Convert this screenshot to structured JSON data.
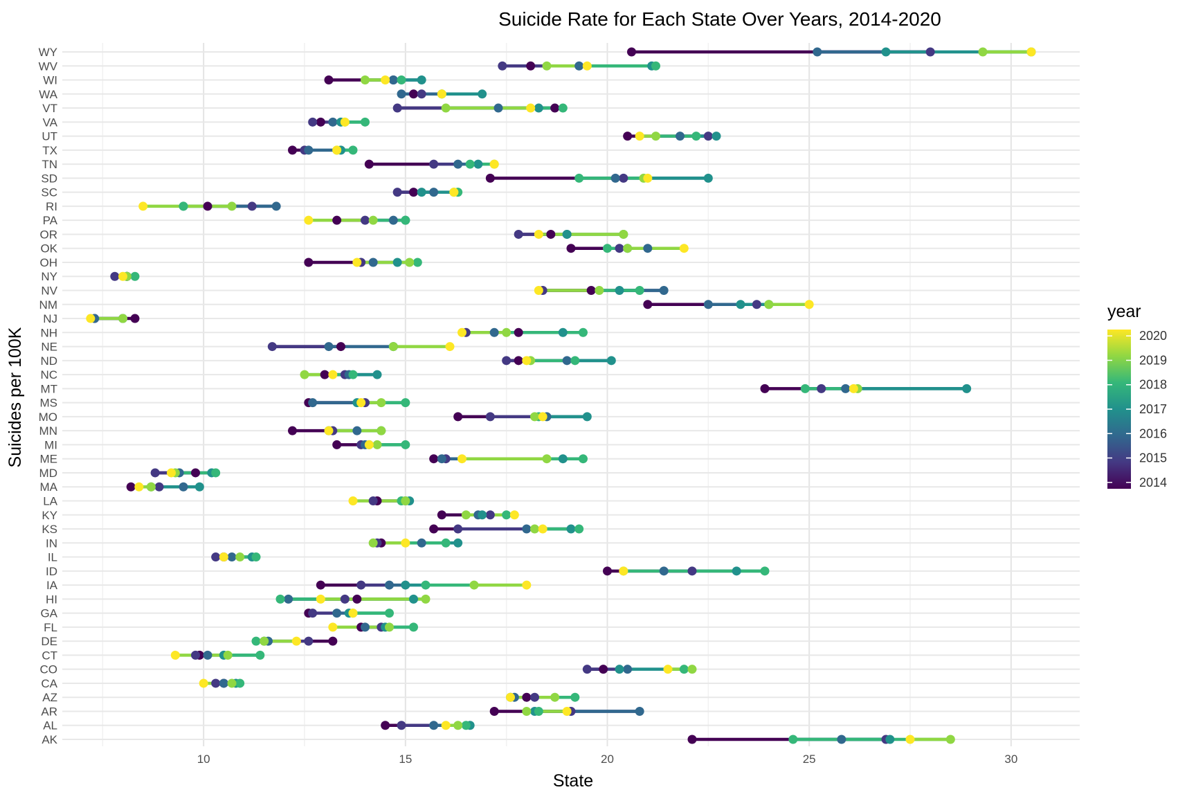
{
  "chart_data": {
    "type": "dot-range",
    "title": "Suicide Rate for Each State Over Years, 2014-2020",
    "xlabel": "State",
    "ylabel": "Suicides per 100K",
    "xlim": [
      6.5,
      31.7
    ],
    "xticks": [
      10,
      15,
      20,
      25,
      30
    ],
    "legend": {
      "title": "year",
      "position": "right",
      "ticks": [
        2014,
        2015,
        2016,
        2017,
        2018,
        2019,
        2020
      ]
    },
    "grid": true,
    "years": [
      2014,
      2015,
      2016,
      2017,
      2018,
      2019,
      2020
    ],
    "colors": {
      "2014": "#440154",
      "2015": "#443983",
      "2016": "#31688e",
      "2017": "#21918c",
      "2018": "#35b779",
      "2019": "#90d743",
      "2020": "#fde725"
    },
    "states": [
      "AK",
      "AL",
      "AR",
      "AZ",
      "CA",
      "CO",
      "CT",
      "DE",
      "FL",
      "GA",
      "HI",
      "IA",
      "ID",
      "IL",
      "IN",
      "KS",
      "KY",
      "LA",
      "MA",
      "MD",
      "ME",
      "MI",
      "MN",
      "MO",
      "MS",
      "MT",
      "NC",
      "ND",
      "NE",
      "NH",
      "NJ",
      "NM",
      "NV",
      "NY",
      "OH",
      "OK",
      "OR",
      "PA",
      "RI",
      "SC",
      "SD",
      "TN",
      "TX",
      "UT",
      "VA",
      "VT",
      "WA",
      "WI",
      "WV",
      "WY"
    ],
    "values": {
      "AK": [
        22.1,
        26.9,
        25.8,
        27.0,
        24.6,
        28.5,
        27.5
      ],
      "AL": [
        14.5,
        14.9,
        15.7,
        16.6,
        16.5,
        16.3,
        16.0
      ],
      "AR": [
        17.2,
        19.1,
        20.8,
        18.2,
        18.3,
        18.0,
        19.0
      ],
      "AZ": [
        18.0,
        18.2,
        17.7,
        17.6,
        19.2,
        18.7,
        17.6
      ],
      "CA": [
        10.5,
        10.3,
        10.5,
        10.8,
        10.9,
        10.7,
        10.0
      ],
      "CO": [
        19.9,
        19.5,
        20.5,
        20.3,
        21.9,
        22.1,
        21.5
      ],
      "CT": [
        9.9,
        9.8,
        10.1,
        10.5,
        11.4,
        10.6,
        9.3
      ],
      "DE": [
        13.2,
        12.6,
        11.6,
        11.5,
        11.3,
        11.5,
        12.3
      ],
      "FL": [
        13.9,
        14.4,
        14.0,
        14.5,
        15.2,
        14.6,
        13.2
      ],
      "GA": [
        12.6,
        12.7,
        13.3,
        13.6,
        14.6,
        13.7,
        13.7
      ],
      "HI": [
        13.8,
        13.5,
        12.1,
        15.2,
        11.9,
        15.5,
        12.9
      ],
      "IA": [
        12.9,
        13.9,
        14.6,
        15.0,
        15.5,
        16.7,
        18.0
      ],
      "ID": [
        20.0,
        22.1,
        21.4,
        23.2,
        23.9,
        20.4,
        20.4
      ],
      "IL": [
        10.5,
        10.3,
        10.7,
        11.2,
        11.3,
        10.9,
        10.5
      ],
      "IN": [
        14.4,
        14.3,
        15.4,
        16.3,
        16.0,
        14.2,
        15.0
      ],
      "KS": [
        15.7,
        16.3,
        18.0,
        19.1,
        19.3,
        18.2,
        18.4
      ],
      "KY": [
        15.9,
        17.1,
        16.8,
        16.9,
        17.5,
        16.5,
        17.7
      ],
      "LA": [
        14.3,
        14.2,
        15.0,
        15.1,
        14.9,
        15.0,
        13.7
      ],
      "MA": [
        8.2,
        8.9,
        9.5,
        9.9,
        8.7,
        8.7,
        8.4
      ],
      "MD": [
        9.8,
        8.8,
        9.4,
        10.2,
        10.3,
        9.3,
        9.2
      ],
      "ME": [
        15.7,
        16.0,
        15.9,
        18.9,
        19.4,
        18.5,
        16.4
      ],
      "MI": [
        13.3,
        13.9,
        14.0,
        14.1,
        15.0,
        14.3,
        14.1
      ],
      "MN": [
        12.2,
        13.2,
        13.8,
        13.1,
        14.4,
        14.4,
        13.1
      ],
      "MO": [
        16.3,
        17.1,
        18.5,
        19.5,
        18.3,
        18.2,
        18.4
      ],
      "MS": [
        12.6,
        14.0,
        12.7,
        13.8,
        15.0,
        14.4,
        13.9
      ],
      "MT": [
        23.9,
        25.3,
        25.9,
        28.9,
        24.9,
        26.2,
        26.1
      ],
      "NC": [
        13.0,
        13.5,
        13.6,
        14.3,
        13.7,
        12.5,
        13.2
      ],
      "ND": [
        17.8,
        17.5,
        19.0,
        20.1,
        19.2,
        18.1,
        18.0
      ],
      "NE": [
        13.4,
        11.7,
        13.1,
        14.7,
        14.7,
        14.7,
        16.1
      ],
      "NH": [
        17.8,
        16.5,
        17.2,
        18.9,
        19.4,
        17.5,
        16.4
      ],
      "NJ": [
        8.3,
        7.3,
        7.3,
        8.0,
        8.0,
        8.0,
        7.2
      ],
      "NM": [
        21.0,
        23.7,
        22.5,
        23.3,
        24.0,
        24.0,
        25.0
      ],
      "NV": [
        19.6,
        18.4,
        21.4,
        20.3,
        20.8,
        19.8,
        18.3
      ],
      "NY": [
        8.1,
        7.8,
        8.1,
        8.1,
        8.3,
        8.1,
        8.0
      ],
      "OH": [
        12.6,
        13.9,
        14.2,
        14.8,
        15.3,
        15.1,
        13.8
      ],
      "OK": [
        19.1,
        20.3,
        21.0,
        20.5,
        20.0,
        20.5,
        21.9
      ],
      "OR": [
        18.6,
        17.8,
        19.0,
        19.0,
        20.4,
        20.4,
        18.3
      ],
      "PA": [
        13.3,
        14.0,
        14.7,
        15.0,
        15.0,
        14.2,
        12.6
      ],
      "RI": [
        10.1,
        11.2,
        11.8,
        9.5,
        9.5,
        10.7,
        8.5
      ],
      "SC": [
        15.2,
        14.8,
        15.7,
        15.4,
        16.3,
        16.2,
        16.2
      ],
      "SD": [
        17.1,
        20.4,
        20.2,
        22.5,
        19.3,
        20.9,
        21.0
      ],
      "TN": [
        14.1,
        15.7,
        16.3,
        16.8,
        16.6,
        17.2,
        17.2
      ],
      "TX": [
        12.2,
        12.5,
        12.6,
        13.4,
        13.7,
        13.3,
        13.3
      ],
      "UT": [
        20.5,
        22.5,
        21.8,
        22.7,
        22.2,
        21.2,
        20.8
      ],
      "VA": [
        12.9,
        12.7,
        13.2,
        13.4,
        14.0,
        13.5,
        13.5
      ],
      "VT": [
        18.7,
        14.8,
        17.3,
        18.3,
        18.9,
        16.0,
        18.1
      ],
      "WA": [
        15.2,
        15.4,
        14.9,
        16.9,
        15.9,
        15.9,
        15.9
      ],
      "WI": [
        13.1,
        14.7,
        14.7,
        15.4,
        14.9,
        14.0,
        14.5
      ],
      "WV": [
        18.1,
        17.4,
        19.3,
        21.1,
        21.2,
        18.5,
        19.5
      ],
      "WY": [
        20.6,
        28.0,
        25.2,
        26.9,
        30.5,
        29.3,
        30.5
      ]
    }
  }
}
